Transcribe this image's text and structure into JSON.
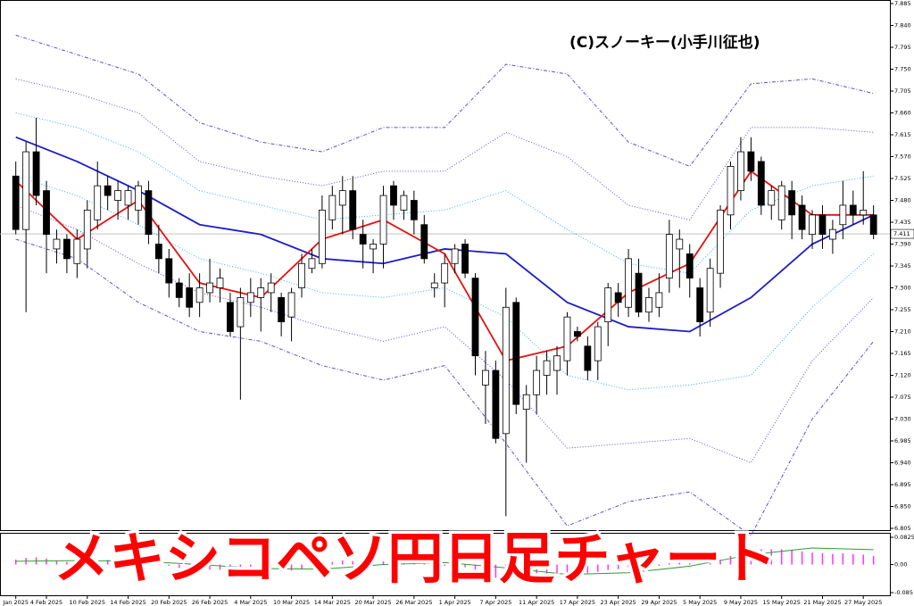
{
  "chart_data": [
    {
      "type": "candlestick",
      "title": "メキシコペソ円日足チャート",
      "credit": "(C)スノーキー(小手川征也)",
      "categories": [
        "Jan 2025",
        null,
        null,
        "4 Feb 2025",
        null,
        null,
        null,
        "10 Feb 2025",
        null,
        null,
        null,
        "14 Feb 2025",
        null,
        null,
        null,
        "20 Feb 2025",
        null,
        null,
        null,
        "26 Feb 2025",
        null,
        null,
        null,
        "4 Mar 2025",
        null,
        null,
        null,
        "10 Mar 2025",
        null,
        null,
        null,
        "14 Mar 2025",
        null,
        null,
        null,
        "20 Mar 2025",
        null,
        null,
        null,
        "26 Mar 2025",
        null,
        null,
        null,
        "1 Apr 2025",
        null,
        null,
        null,
        "7 Apr 2025",
        null,
        null,
        null,
        "11 Apr 2025",
        null,
        null,
        null,
        "17 Apr 2025",
        null,
        null,
        null,
        "23 Apr 2025",
        null,
        null,
        null,
        "29 Apr 2025",
        null,
        null,
        null,
        "5 May 2025",
        null,
        null,
        null,
        "9 May 2025",
        null,
        null,
        null,
        "15 May 2025",
        null,
        null,
        null,
        "21 May 2025",
        null,
        null,
        null,
        "27 May 2025",
        null
      ],
      "open": [
        7.53,
        7.42,
        7.58,
        7.5,
        7.38,
        7.4,
        7.35,
        7.38,
        7.44,
        7.51,
        7.48,
        7.47,
        7.46,
        7.5,
        7.39,
        7.36,
        7.31,
        7.3,
        7.27,
        7.29,
        7.3,
        7.27,
        7.22,
        7.27,
        7.28,
        7.29,
        7.28,
        7.24,
        7.3,
        7.34,
        7.35,
        7.44,
        7.47,
        7.5,
        7.41,
        7.38,
        7.39,
        7.51,
        7.46,
        7.48,
        7.43,
        7.3,
        7.31,
        7.35,
        7.39,
        7.32,
        7.1,
        7.13,
        7.0,
        7.27,
        7.05,
        7.08,
        7.12,
        7.13,
        7.15,
        7.21,
        7.18,
        7.15,
        7.23,
        7.29,
        7.26,
        7.33,
        7.25,
        7.26,
        7.32,
        7.38,
        7.37,
        7.3,
        7.25,
        7.33,
        7.45,
        7.5,
        7.58,
        7.56,
        7.47,
        7.44,
        7.5,
        7.47,
        7.41,
        7.45,
        7.4,
        7.43,
        7.47,
        7.45,
        7.45
      ],
      "high": [
        7.56,
        7.6,
        7.65,
        7.52,
        7.42,
        7.41,
        7.42,
        7.48,
        7.56,
        7.53,
        7.52,
        7.51,
        7.52,
        7.52,
        7.43,
        7.38,
        7.32,
        7.33,
        7.33,
        7.36,
        7.34,
        7.29,
        7.3,
        7.32,
        7.32,
        7.33,
        7.29,
        7.3,
        7.37,
        7.38,
        7.49,
        7.51,
        7.53,
        7.53,
        7.44,
        7.4,
        7.51,
        7.52,
        7.5,
        7.5,
        7.45,
        7.33,
        7.37,
        7.39,
        7.4,
        7.33,
        7.17,
        7.15,
        7.3,
        7.28,
        7.1,
        7.16,
        7.17,
        7.18,
        7.25,
        7.22,
        7.2,
        7.23,
        7.31,
        7.31,
        7.38,
        7.36,
        7.3,
        7.33,
        7.44,
        7.42,
        7.39,
        7.32,
        7.36,
        7.47,
        7.56,
        7.61,
        7.61,
        7.57,
        7.51,
        7.52,
        7.52,
        7.49,
        7.46,
        7.47,
        7.44,
        7.52,
        7.5,
        7.54,
        7.47
      ],
      "low": [
        7.41,
        7.25,
        7.47,
        7.33,
        7.35,
        7.33,
        7.32,
        7.34,
        7.42,
        7.46,
        7.44,
        7.44,
        7.43,
        7.39,
        7.33,
        7.28,
        7.26,
        7.24,
        7.24,
        7.27,
        7.27,
        7.2,
        7.07,
        7.24,
        7.21,
        7.25,
        7.2,
        7.19,
        7.28,
        7.33,
        7.34,
        7.42,
        7.41,
        7.4,
        7.34,
        7.33,
        7.34,
        7.44,
        7.44,
        7.41,
        7.35,
        7.28,
        7.26,
        7.33,
        7.32,
        7.12,
        7.02,
        6.98,
        6.83,
        7.04,
        6.94,
        7.04,
        7.08,
        7.08,
        7.12,
        7.19,
        7.11,
        7.11,
        7.18,
        7.24,
        7.24,
        7.24,
        7.23,
        7.24,
        7.29,
        7.3,
        7.28,
        7.2,
        7.22,
        7.3,
        7.42,
        7.48,
        7.52,
        7.45,
        7.44,
        7.42,
        7.4,
        7.4,
        7.38,
        7.38,
        7.37,
        7.4,
        7.43,
        7.43,
        7.4
      ],
      "close": [
        7.42,
        7.58,
        7.49,
        7.41,
        7.4,
        7.36,
        7.4,
        7.46,
        7.51,
        7.49,
        7.5,
        7.5,
        7.51,
        7.41,
        7.36,
        7.31,
        7.28,
        7.26,
        7.3,
        7.31,
        7.32,
        7.21,
        7.28,
        7.29,
        7.3,
        7.31,
        7.23,
        7.29,
        7.35,
        7.36,
        7.46,
        7.49,
        7.5,
        7.42,
        7.39,
        7.39,
        7.49,
        7.47,
        7.49,
        7.44,
        7.36,
        7.31,
        7.35,
        7.38,
        7.33,
        7.16,
        7.13,
        6.99,
        7.26,
        7.06,
        7.08,
        7.13,
        7.15,
        7.16,
        7.24,
        7.2,
        7.13,
        7.22,
        7.3,
        7.27,
        7.36,
        7.25,
        7.28,
        7.29,
        7.41,
        7.4,
        7.32,
        7.23,
        7.34,
        7.46,
        7.55,
        7.58,
        7.54,
        7.47,
        7.5,
        7.51,
        7.45,
        7.42,
        7.45,
        7.41,
        7.42,
        7.47,
        7.45,
        7.46,
        7.41
      ],
      "up_color": "#ffffff",
      "down_color": "#000000",
      "overlay_x": [
        0,
        6,
        12,
        18,
        24,
        30,
        36,
        42,
        48,
        54,
        60,
        66,
        72,
        78,
        84
      ],
      "overlays": [
        {
          "color": "#5a4fcf",
          "style": "dashdot",
          "values": [
            7.82,
            7.78,
            7.74,
            7.64,
            7.6,
            7.58,
            7.63,
            7.63,
            7.76,
            7.74,
            7.6,
            7.55,
            7.72,
            7.73,
            7.7
          ]
        },
        {
          "color": "#5a4fcf",
          "style": "dotted",
          "values": [
            7.73,
            7.7,
            7.66,
            7.56,
            7.53,
            7.51,
            7.54,
            7.54,
            7.62,
            7.57,
            7.47,
            7.44,
            7.63,
            7.63,
            7.62
          ]
        },
        {
          "color": "#3aaee8",
          "style": "dotted",
          "values": [
            7.66,
            7.63,
            7.58,
            7.5,
            7.47,
            7.44,
            7.45,
            7.46,
            7.5,
            7.42,
            7.35,
            7.33,
            7.46,
            7.51,
            7.53
          ]
        },
        {
          "color": "#3aaee8",
          "style": "dotted",
          "values": [
            7.53,
            7.49,
            7.43,
            7.36,
            7.33,
            7.29,
            7.28,
            7.3,
            7.24,
            7.12,
            7.09,
            7.1,
            7.12,
            7.26,
            7.37
          ]
        },
        {
          "color": "#5a4fcf",
          "style": "dotted",
          "values": [
            7.47,
            7.42,
            7.35,
            7.29,
            7.26,
            7.22,
            7.19,
            7.22,
            7.11,
            6.97,
            6.98,
            6.99,
            6.94,
            7.15,
            7.28
          ]
        },
        {
          "color": "#5a4fcf",
          "style": "dashdot",
          "values": [
            7.4,
            7.36,
            7.27,
            7.21,
            7.19,
            7.14,
            7.11,
            7.14,
            6.98,
            6.81,
            6.86,
            6.88,
            6.79,
            7.03,
            7.19
          ]
        },
        {
          "color": "#1c1cc8",
          "style": "solid",
          "values": [
            7.61,
            7.56,
            7.5,
            7.43,
            7.41,
            7.36,
            7.35,
            7.38,
            7.37,
            7.27,
            7.22,
            7.21,
            7.28,
            7.39,
            7.45
          ]
        },
        {
          "color": "#e81010",
          "style": "solid",
          "values": [
            7.52,
            7.4,
            7.48,
            7.31,
            7.28,
            7.4,
            7.44,
            7.37,
            7.15,
            7.18,
            7.29,
            7.35,
            7.54,
            7.45,
            7.45
          ]
        }
      ],
      "last_price": 7.411,
      "ylim": [
        6.805,
        7.885
      ],
      "yticks": [
        7.885,
        {
          "value": 7.84,
          "label": "7.840"
        },
        7.795,
        {
          "value": 7.75,
          "label": "7.750"
        },
        7.705,
        {
          "value": 7.66,
          "label": "7.660"
        },
        7.615,
        {
          "value": 7.57,
          "label": "7.570"
        },
        7.525,
        {
          "value": 7.48,
          "label": "7.480"
        },
        7.435,
        {
          "value": 7.39,
          "label": "7.390"
        },
        7.345,
        {
          "value": 7.3,
          "label": "7.300"
        },
        7.255,
        {
          "value": 7.21,
          "label": "7.210"
        },
        7.165,
        {
          "value": 7.12,
          "label": "7.120"
        },
        7.075,
        {
          "value": 7.03,
          "label": "7.030"
        },
        6.985,
        {
          "value": 6.94,
          "label": "6.940"
        },
        6.895,
        {
          "value": 6.85,
          "label": "6.850"
        },
        6.805
      ]
    },
    {
      "type": "macd",
      "values": [
        0.015,
        0.02,
        0.022,
        0.018,
        0.012,
        0.008,
        0.005,
        0.008,
        0.012,
        0.014,
        0.013,
        0.012,
        0.012,
        0.008,
        0.003,
        -0.004,
        -0.01,
        -0.014,
        -0.015,
        -0.016,
        -0.016,
        -0.02,
        -0.02,
        -0.019,
        -0.018,
        -0.018,
        -0.02,
        -0.018,
        -0.012,
        -0.008,
        0.002,
        0.008,
        0.012,
        0.01,
        0.008,
        0.006,
        0.01,
        0.012,
        0.012,
        0.01,
        0.006,
        -0.002,
        -0.004,
        -0.004,
        -0.008,
        -0.02,
        -0.03,
        -0.04,
        -0.035,
        -0.04,
        -0.042,
        -0.04,
        -0.038,
        -0.034,
        -0.028,
        -0.026,
        -0.026,
        -0.022,
        -0.016,
        -0.014,
        -0.008,
        -0.008,
        -0.006,
        -0.004,
        0.004,
        0.006,
        0.004,
        0.002,
        0.004,
        0.014,
        0.026,
        0.036,
        0.044,
        0.046,
        0.046,
        0.046,
        0.044,
        0.04,
        0.036,
        0.034,
        0.032,
        0.034,
        0.032,
        0.03,
        0.026
      ],
      "color": "#ff33ff",
      "signal_x": [
        0,
        6,
        12,
        18,
        24,
        30,
        36,
        42,
        48,
        54,
        60,
        66,
        72,
        78,
        84
      ],
      "signal": [
        0.01,
        0.012,
        0.01,
        0.0,
        -0.012,
        -0.014,
        0.0,
        0.006,
        -0.01,
        -0.03,
        -0.025,
        -0.005,
        0.03,
        0.05,
        0.045
      ],
      "signal_color": "#2e9e2e",
      "ylim": [
        -0.085,
        0.0825
      ],
      "yticks": [
        0.0825,
        {
          "value": 0,
          "label": "0.00"
        },
        -0.085
      ]
    }
  ]
}
